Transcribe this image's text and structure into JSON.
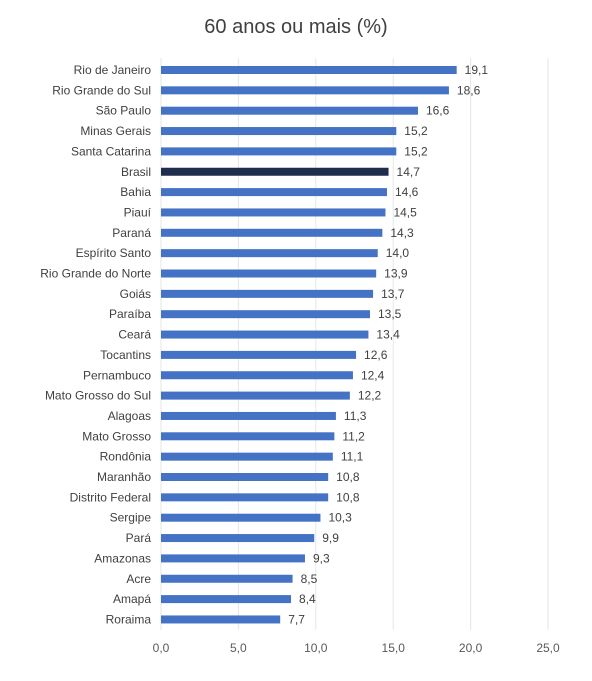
{
  "chart_data": {
    "type": "bar",
    "orientation": "horizontal",
    "title": "60 anos ou mais (%)",
    "categories": [
      "Rio de Janeiro",
      "Rio Grande do Sul",
      "São Paulo",
      "Minas Gerais",
      "Santa Catarina",
      "Brasil",
      "Bahia",
      "Piauí",
      "Paraná",
      "Espírito Santo",
      "Rio Grande do Norte",
      "Goiás",
      "Paraíba",
      "Ceará",
      "Tocantins",
      "Pernambuco",
      "Mato Grosso do Sul",
      "Alagoas",
      "Mato Grosso",
      "Rondônia",
      "Maranhão",
      "Distrito Federal",
      "Sergipe",
      "Pará",
      "Amazonas",
      "Acre",
      "Amapá",
      "Roraima"
    ],
    "values": [
      19.1,
      18.6,
      16.6,
      15.2,
      15.2,
      14.7,
      14.6,
      14.5,
      14.3,
      14.0,
      13.9,
      13.7,
      13.5,
      13.4,
      12.6,
      12.4,
      12.2,
      11.3,
      11.2,
      11.1,
      10.8,
      10.8,
      10.3,
      9.9,
      9.3,
      8.5,
      8.4,
      7.7
    ],
    "value_labels": [
      "19,1",
      "18,6",
      "16,6",
      "15,2",
      "15,2",
      "14,7",
      "14,6",
      "14,5",
      "14,3",
      "14,0",
      "13,9",
      "13,7",
      "13,5",
      "13,4",
      "12,6",
      "12,4",
      "12,2",
      "11,3",
      "11,2",
      "11,1",
      "10,8",
      "10,8",
      "10,3",
      "9,9",
      "9,3",
      "8,5",
      "8,4",
      "7,7"
    ],
    "highlight_category": "Brasil",
    "xlim": [
      0,
      25
    ],
    "xticks": [
      0,
      5,
      10,
      15,
      20,
      25
    ],
    "xtick_labels": [
      "0,0",
      "5,0",
      "10,0",
      "15,0",
      "20,0",
      "25,0"
    ],
    "grid": true,
    "colors": {
      "bar": "#4472c4",
      "highlight": "#1f2d4d",
      "grid": "#e6e6e6",
      "text": "#404040"
    }
  }
}
